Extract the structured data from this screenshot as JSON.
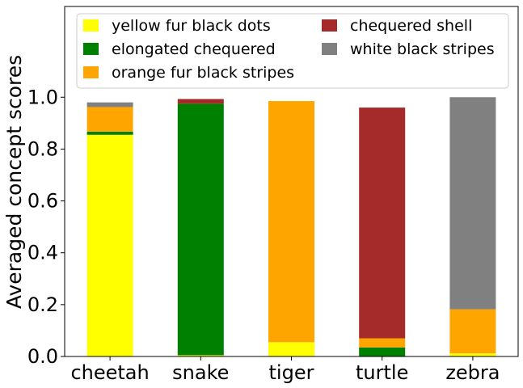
{
  "chart_data": {
    "type": "bar",
    "stacked": true,
    "categories": [
      "cheetah",
      "snake",
      "tiger",
      "turtle",
      "zebra"
    ],
    "ylabel": "Averaged concept scores",
    "xlabel": "",
    "ylim": [
      0,
      1.35
    ],
    "yticks": [
      "0.0",
      "0.2",
      "0.4",
      "0.6",
      "0.8",
      "1.0"
    ],
    "legend_position": "top",
    "grid": false,
    "series": [
      {
        "name": "yellow fur black dots",
        "color": "#ffff00",
        "values": [
          0.855,
          0.005,
          0.055,
          0.0,
          0.012
        ]
      },
      {
        "name": "elongated chequered",
        "color": "#008000",
        "values": [
          0.012,
          0.97,
          0.0,
          0.035,
          0.0
        ]
      },
      {
        "name": "orange fur black stripes",
        "color": "#ffa500",
        "values": [
          0.095,
          0.0,
          0.93,
          0.035,
          0.17
        ]
      },
      {
        "name": "chequered shell",
        "color": "#a52a2a",
        "values": [
          0.0,
          0.018,
          0.0,
          0.89,
          0.0
        ]
      },
      {
        "name": "white black stripes",
        "color": "#808080",
        "values": [
          0.018,
          0.0,
          0.0,
          0.0,
          0.818
        ]
      }
    ]
  }
}
